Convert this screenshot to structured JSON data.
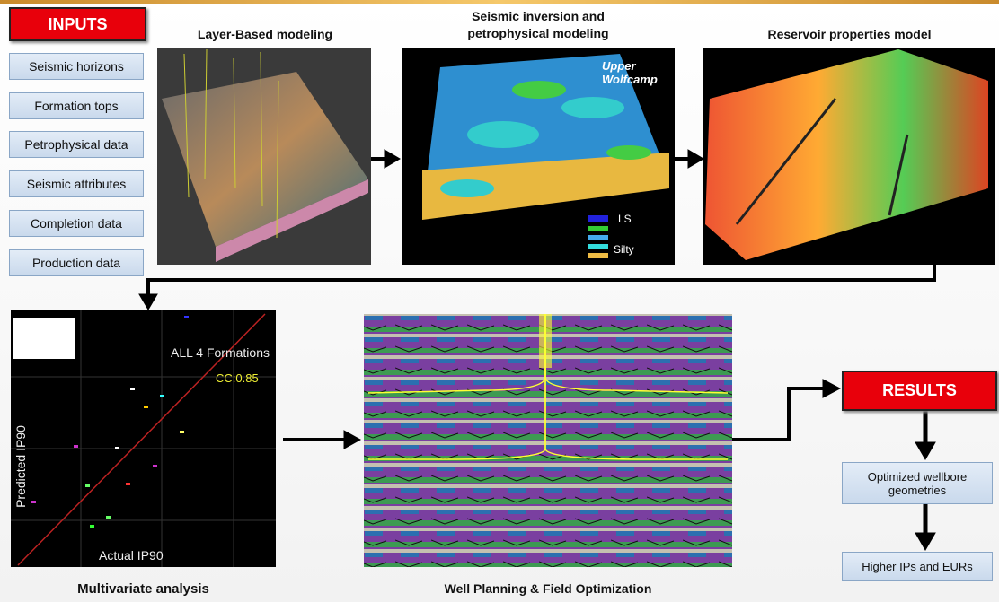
{
  "inputs": {
    "title": "INPUTS",
    "items": [
      "Seismic horizons",
      "Formation tops",
      "Petrophysical data",
      "Seismic attributes",
      "Completion data",
      "Production data"
    ]
  },
  "panels": {
    "layer_based": {
      "title": "Layer-Based modeling"
    },
    "seismic_inversion": {
      "title": [
        "Seismic inversion and",
        "petrophysical modeling"
      ],
      "annotation": [
        "Upper",
        "Wolfcamp"
      ],
      "legend": [
        "LS",
        "Silty"
      ]
    },
    "reservoir": {
      "title": "Reservoir properties model"
    },
    "multivariate": {
      "title": "Multivariate analysis",
      "annotation": "ALL 4 Formations",
      "cc": "CC:0.85",
      "y_label": "Predicted IP90",
      "x_label": "Actual IP90"
    },
    "well_planning": {
      "title": "Well Planning & Field Optimization"
    }
  },
  "results": {
    "title": "RESULTS",
    "items": [
      "Optimized wellbore geometries",
      "Higher IPs and EURs"
    ]
  }
}
